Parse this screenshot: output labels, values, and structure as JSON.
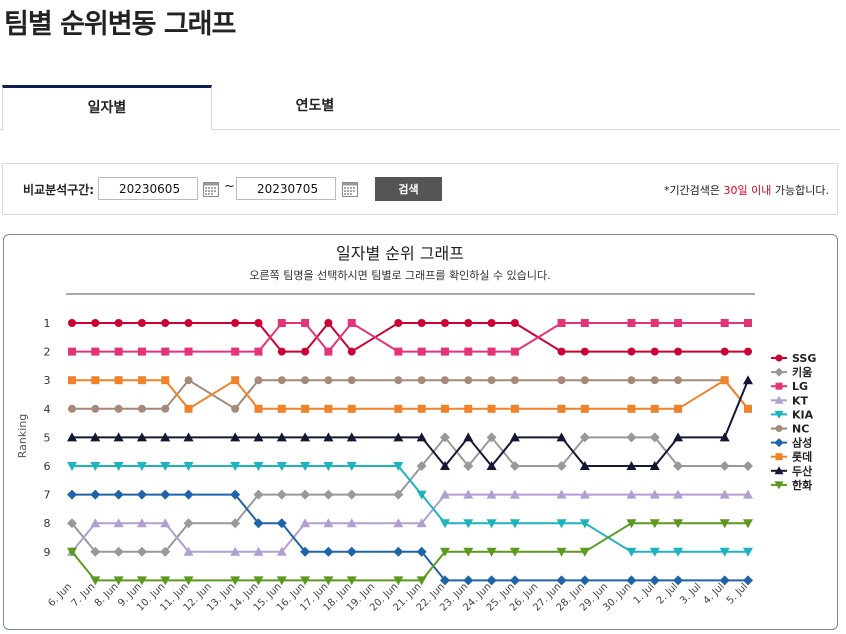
{
  "page": {
    "title": "팀별 순위변동 그래프"
  },
  "tabs": [
    {
      "label": "일자별",
      "active": true
    },
    {
      "label": "연도별",
      "active": false
    }
  ],
  "filter": {
    "label": "비교분석구간:",
    "start": "20230605",
    "separator": "~",
    "end": "20230705",
    "search_label": "검색",
    "note_prefix": "*기간검색은 ",
    "note_highlight": "30일 이내",
    "note_suffix": " 가능합니다."
  },
  "chart_data": {
    "type": "line",
    "title": "일자별 순위 그래프",
    "subtitle": "오른쪽 팀명을 선택하시면 팀별로 그래프를 확인하실 수 있습니다.",
    "ylabel": "Ranking",
    "xlabel": "",
    "ylim": [
      1,
      10
    ],
    "y_ticks": [
      "1",
      "2",
      "3",
      "4",
      "5",
      "6",
      "7",
      "8",
      "9"
    ],
    "y_inverted": true,
    "legend_position": "right",
    "categories": [
      "6. Jun",
      "7. Jun",
      "8. Jun",
      "9. Jun",
      "10. Jun",
      "11. Jun",
      "12. Jun",
      "13. Jun",
      "14. Jun",
      "15. Jun",
      "16. Jun",
      "17. Jun",
      "18. Jun",
      "19. Jun",
      "20. Jun",
      "21. Jun",
      "22. Jun",
      "23. Jun",
      "24. Jun",
      "25. Jun",
      "26. Jun",
      "27. Jun",
      "28. Jun",
      "29. Jun",
      "30. Jun",
      "1. Jul",
      "2. Jul",
      "3. Jul",
      "4. Jul",
      "5. Jul"
    ],
    "series": [
      {
        "name": "SSG",
        "color": "#cc0033",
        "marker": "circle",
        "values": [
          1,
          1,
          1,
          1,
          1,
          1,
          null,
          1,
          1,
          2,
          2,
          1,
          2,
          null,
          1,
          1,
          1,
          1,
          1,
          1,
          null,
          2,
          2,
          null,
          2,
          2,
          2,
          null,
          2,
          2
        ]
      },
      {
        "name": "키움",
        "color": "#999999",
        "marker": "diamond",
        "values": [
          8,
          9,
          9,
          9,
          9,
          8,
          null,
          8,
          7,
          7,
          7,
          7,
          7,
          null,
          7,
          6,
          5,
          6,
          5,
          6,
          null,
          6,
          5,
          null,
          5,
          5,
          6,
          null,
          6,
          6
        ]
      },
      {
        "name": "LG",
        "color": "#e5337a",
        "marker": "square",
        "values": [
          2,
          2,
          2,
          2,
          2,
          2,
          null,
          2,
          2,
          1,
          1,
          2,
          1,
          null,
          2,
          2,
          2,
          2,
          2,
          2,
          null,
          1,
          1,
          null,
          1,
          1,
          1,
          null,
          1,
          1
        ]
      },
      {
        "name": "KT",
        "color": "#b09fd0",
        "marker": "triangle",
        "values": [
          9,
          8,
          8,
          8,
          8,
          9,
          null,
          9,
          9,
          9,
          8,
          8,
          8,
          null,
          8,
          8,
          7,
          7,
          7,
          7,
          null,
          7,
          7,
          null,
          7,
          7,
          7,
          null,
          7,
          7
        ]
      },
      {
        "name": "KIA",
        "color": "#1fb3bf",
        "marker": "triangle-down",
        "values": [
          6,
          6,
          6,
          6,
          6,
          6,
          null,
          6,
          6,
          6,
          6,
          6,
          6,
          null,
          6,
          7,
          8,
          8,
          8,
          8,
          null,
          8,
          8,
          null,
          9,
          9,
          9,
          null,
          9,
          9
        ]
      },
      {
        "name": "NC",
        "color": "#a58a7a",
        "marker": "circle",
        "values": [
          4,
          4,
          4,
          4,
          4,
          3,
          null,
          4,
          3,
          3,
          3,
          3,
          3,
          null,
          3,
          3,
          3,
          3,
          3,
          3,
          null,
          3,
          3,
          null,
          3,
          3,
          3,
          null,
          3,
          4
        ]
      },
      {
        "name": "삼성",
        "color": "#1f64a8",
        "marker": "diamond",
        "values": [
          7,
          7,
          7,
          7,
          7,
          7,
          null,
          7,
          8,
          8,
          9,
          9,
          9,
          null,
          9,
          9,
          10,
          10,
          10,
          10,
          null,
          10,
          10,
          null,
          10,
          10,
          10,
          null,
          10,
          10
        ]
      },
      {
        "name": "롯데",
        "color": "#f0822a",
        "marker": "square",
        "values": [
          3,
          3,
          3,
          3,
          3,
          4,
          null,
          3,
          4,
          4,
          4,
          4,
          4,
          null,
          4,
          4,
          4,
          4,
          4,
          4,
          null,
          4,
          4,
          null,
          4,
          4,
          4,
          null,
          3,
          4
        ]
      },
      {
        "name": "두산",
        "color": "#131833",
        "marker": "triangle",
        "values": [
          5,
          5,
          5,
          5,
          5,
          5,
          null,
          5,
          5,
          5,
          5,
          5,
          5,
          null,
          5,
          5,
          6,
          5,
          6,
          5,
          null,
          5,
          6,
          null,
          6,
          6,
          5,
          null,
          5,
          3
        ]
      },
      {
        "name": "한화",
        "color": "#5c9a1f",
        "marker": "triangle-down",
        "values": [
          9,
          10,
          10,
          10,
          10,
          10,
          null,
          10,
          10,
          10,
          10,
          10,
          10,
          null,
          10,
          10,
          9,
          9,
          9,
          9,
          null,
          9,
          9,
          null,
          8,
          8,
          8,
          null,
          8,
          8
        ]
      }
    ]
  }
}
